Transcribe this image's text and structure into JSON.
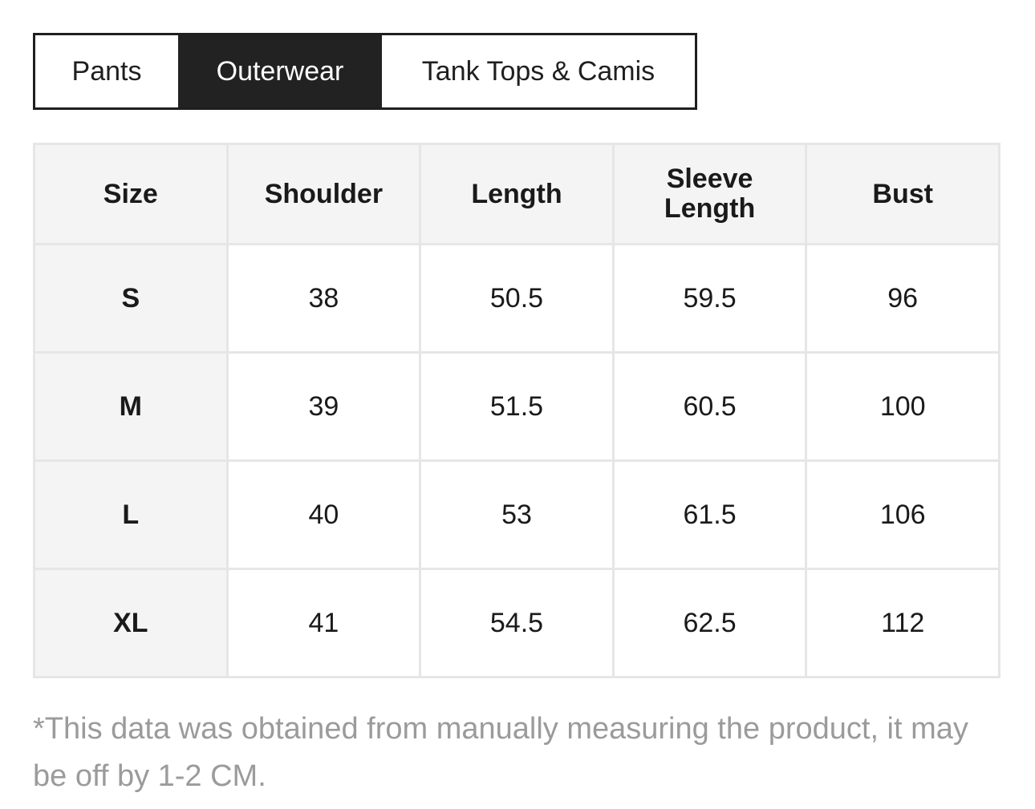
{
  "tabs": [
    {
      "label": "Pants",
      "active": false
    },
    {
      "label": "Outerwear",
      "active": true
    },
    {
      "label": "Tank Tops & Camis",
      "active": false
    }
  ],
  "table": {
    "headers": [
      "Size",
      "Shoulder",
      "Length",
      "Sleeve\nLength",
      "Bust"
    ],
    "rows": [
      {
        "size": "S",
        "values": [
          "38",
          "50.5",
          "59.5",
          "96"
        ]
      },
      {
        "size": "M",
        "values": [
          "39",
          "51.5",
          "60.5",
          "100"
        ]
      },
      {
        "size": "L",
        "values": [
          "40",
          "53",
          "61.5",
          "106"
        ]
      },
      {
        "size": "XL",
        "values": [
          "41",
          "54.5",
          "62.5",
          "112"
        ]
      }
    ]
  },
  "note": "*This data was obtained from manually measuring the product, it may be off by 1-2 CM.",
  "colors": {
    "active_tab_bg": "#222222",
    "header_bg": "#f4f4f4",
    "border": "#e6e6e6",
    "note_text": "#9b9b9b"
  }
}
